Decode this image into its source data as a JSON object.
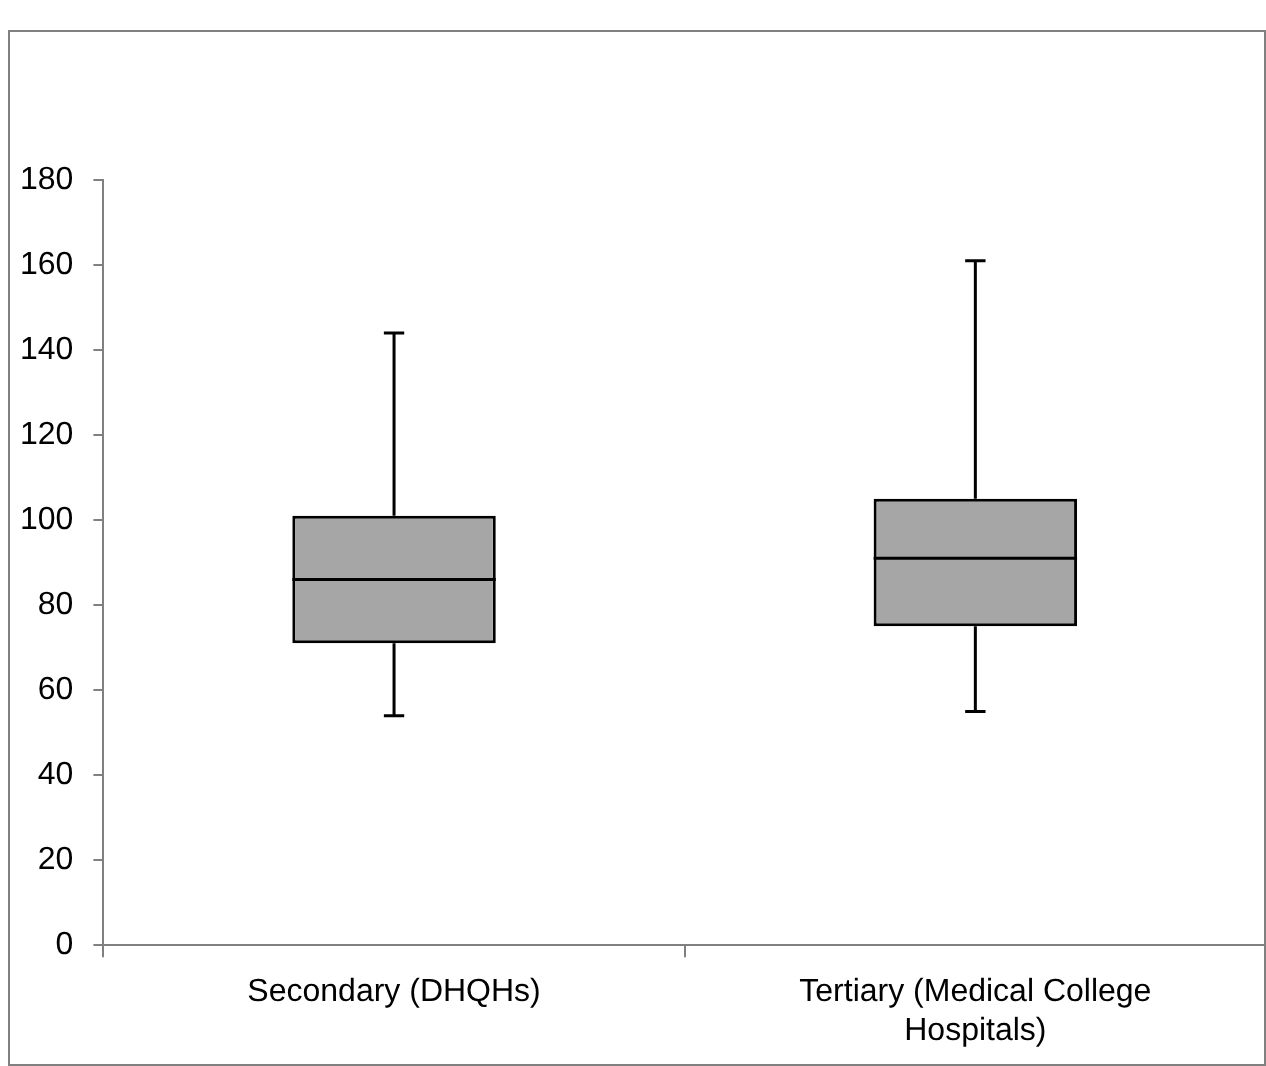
{
  "chart_data": {
    "type": "box",
    "categories": [
      "Secondary (DHQHs)",
      "Tertiary (Medical College Hospitals)"
    ],
    "color": "#a6a6a6",
    "boxes": [
      {
        "low": 54,
        "q1": 71,
        "median": 86,
        "q3": 101,
        "high": 144
      },
      {
        "low": 55,
        "q1": 75,
        "median": 91,
        "q3": 105,
        "high": 161
      }
    ],
    "ylim": [
      0,
      180
    ],
    "yticks": [
      0,
      20,
      40,
      60,
      80,
      100,
      120,
      140,
      160,
      180
    ],
    "grid": false
  }
}
